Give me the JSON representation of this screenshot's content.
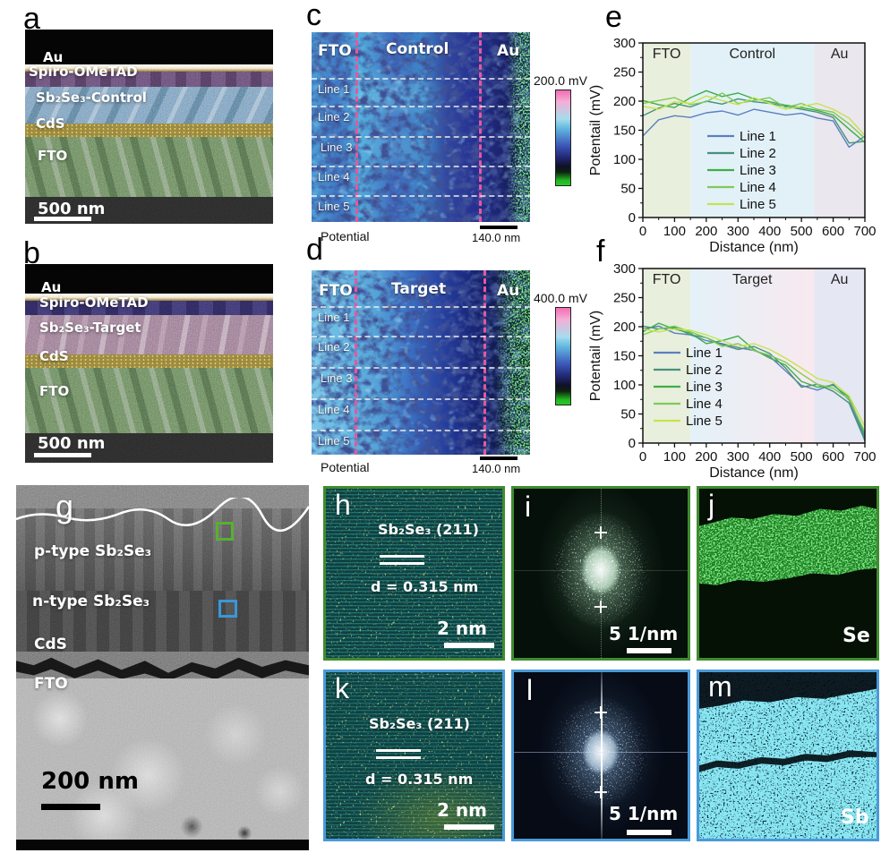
{
  "colors": {
    "line1": "#5b7fc0",
    "line2": "#47917c",
    "line3": "#3fae47",
    "line4": "#7fca57",
    "line5": "#c8e24c",
    "green_border": "#3f8c2f",
    "blue_border": "#4a9ad8",
    "magenta_dash": "#e5579e",
    "colorbar_pink": "#f26cb4",
    "colorbar_green": "#28c828"
  },
  "panel_a": {
    "letter": "a",
    "label_au": "Au",
    "label_spiro": "Spiro-OMeTAD",
    "label_absorber": "Sb₂Se₃-Control",
    "label_cds": "CdS",
    "label_fto": "FTO",
    "scale_bar": "500 nm"
  },
  "panel_b": {
    "letter": "b",
    "label_au": "Au",
    "label_spiro": "Spiro-OMeTAD",
    "label_absorber": "Sb₂Se₃-Target",
    "label_cds": "CdS",
    "label_fto": "FTO",
    "scale_bar": "500 nm"
  },
  "panel_c": {
    "letter": "c",
    "region_fto": "FTO",
    "region_mid": "Control",
    "region_au": "Au",
    "lines": [
      "Line 1",
      "Line 2",
      "Line 3",
      "Line 4",
      "Line 5"
    ],
    "colorbar_label": "200.0 mV",
    "scale_bar": "140.0 nm",
    "signal_label": "Potential"
  },
  "panel_d": {
    "letter": "d",
    "region_fto": "FTO",
    "region_mid": "Target",
    "region_au": "Au",
    "lines": [
      "Line 1",
      "Line 2",
      "Line 3",
      "Line 4",
      "Line 5"
    ],
    "colorbar_label": "400.0 mV",
    "scale_bar": "140.0 nm",
    "signal_label": "Potential"
  },
  "chart_data": [
    {
      "type": "line",
      "panel_letter": "e",
      "xlabel": "Distance (nm)",
      "ylabel": "Potentail (mV)",
      "xlim": [
        0,
        700
      ],
      "ylim": [
        0,
        300
      ],
      "xticks": [
        0,
        100,
        200,
        300,
        400,
        500,
        600,
        700
      ],
      "yticks": [
        0,
        50,
        100,
        150,
        200,
        250,
        300
      ],
      "grid": false,
      "legend_position": "center-bottom",
      "x": [
        0,
        50,
        100,
        150,
        200,
        250,
        300,
        350,
        400,
        450,
        500,
        550,
        600,
        650,
        700
      ],
      "series": [
        {
          "name": "Line 1",
          "color": "#5b7fc0",
          "values": [
            140,
            168,
            175,
            172,
            180,
            183,
            176,
            186,
            181,
            176,
            179,
            171,
            166,
            121,
            140
          ]
        },
        {
          "name": "Line 2",
          "color": "#47917c",
          "values": [
            175,
            188,
            196,
            190,
            200,
            195,
            204,
            199,
            196,
            191,
            186,
            181,
            172,
            128,
            131
          ]
        },
        {
          "name": "Line 3",
          "color": "#3fae47",
          "values": [
            201,
            194,
            189,
            206,
            218,
            208,
            214,
            204,
            199,
            193,
            189,
            184,
            176,
            152,
            129
          ]
        },
        {
          "name": "Line 4",
          "color": "#7fca57",
          "values": [
            196,
            201,
            206,
            194,
            199,
            214,
            196,
            201,
            206,
            189,
            196,
            186,
            181,
            161,
            136
          ]
        },
        {
          "name": "Line 5",
          "color": "#c8e24c",
          "values": [
            191,
            186,
            199,
            196,
            209,
            201,
            194,
            206,
            196,
            186,
            191,
            196,
            186,
            171,
            141
          ]
        }
      ],
      "regions": [
        {
          "label": "FTO",
          "from": 0,
          "to": 150,
          "colors": [
            "#e8efdd"
          ]
        },
        {
          "label": "Control",
          "from": 150,
          "to": 540,
          "colors": [
            "#e2f1f8"
          ]
        },
        {
          "label": "Au",
          "from": 540,
          "to": 700,
          "colors": [
            "#eae7ee"
          ]
        }
      ]
    },
    {
      "type": "line",
      "panel_letter": "f",
      "xlabel": "Distance (nm)",
      "ylabel": "Potentail (mV)",
      "xlim": [
        0,
        700
      ],
      "ylim": [
        0,
        300
      ],
      "xticks": [
        0,
        100,
        200,
        300,
        400,
        500,
        600,
        700
      ],
      "yticks": [
        0,
        50,
        100,
        150,
        200,
        250,
        300
      ],
      "grid": false,
      "legend_position": "left-middle",
      "x": [
        0,
        50,
        100,
        150,
        200,
        250,
        300,
        350,
        400,
        450,
        500,
        550,
        600,
        650,
        700
      ],
      "series": [
        {
          "name": "Line 1",
          "color": "#5b7fc0",
          "values": [
            196,
            201,
            189,
            186,
            176,
            171,
            164,
            159,
            149,
            124,
            99,
            91,
            101,
            74,
            9
          ]
        },
        {
          "name": "Line 2",
          "color": "#47917c",
          "values": [
            201,
            196,
            199,
            186,
            181,
            169,
            161,
            166,
            154,
            129,
            96,
            101,
            89,
            69,
            4
          ]
        },
        {
          "name": "Line 3",
          "color": "#3fae47",
          "values": [
            191,
            206,
            196,
            189,
            171,
            176,
            184,
            161,
            146,
            134,
            106,
            96,
            99,
            79,
            14
          ]
        },
        {
          "name": "Line 4",
          "color": "#7fca57",
          "values": [
            186,
            196,
            201,
            191,
            181,
            166,
            171,
            159,
            151,
            139,
            119,
            101,
            94,
            76,
            19
          ]
        },
        {
          "name": "Line 5",
          "color": "#c8e24c",
          "values": [
            196,
            191,
            196,
            194,
            186,
            176,
            166,
            171,
            161,
            146,
            129,
            111,
            104,
            81,
            29
          ]
        }
      ],
      "regions": [
        {
          "label": "FTO",
          "from": 0,
          "to": 150,
          "colors": [
            "#e8efdd"
          ]
        },
        {
          "label": "Target",
          "from": 150,
          "to": 540,
          "colors": [
            "#e4f1f8",
            "#f8e9ef"
          ]
        },
        {
          "label": "Au",
          "from": 540,
          "to": 700,
          "colors": [
            "#e5e7f3"
          ]
        }
      ]
    }
  ],
  "panel_g": {
    "letter": "g",
    "label_p": "p-type Sb₂Se₃",
    "label_n": "n-type Sb₂Se₃",
    "label_cds": "CdS",
    "label_fto": "FTO",
    "scale_bar": "200 nm"
  },
  "panel_h": {
    "letter": "h",
    "phase": "Sb₂Se₃ (211)",
    "spacing": "d = 0.315 nm",
    "scale_bar": "2 nm"
  },
  "panel_i": {
    "letter": "i",
    "scale_bar": "5 1/nm"
  },
  "panel_j": {
    "letter": "j",
    "element": "Se"
  },
  "panel_k": {
    "letter": "k",
    "phase": "Sb₂Se₃ (211)",
    "spacing": "d = 0.315 nm",
    "scale_bar": "2 nm"
  },
  "panel_l": {
    "letter": "l",
    "scale_bar": "5 1/nm"
  },
  "panel_m": {
    "letter": "m",
    "element": "Sb"
  }
}
